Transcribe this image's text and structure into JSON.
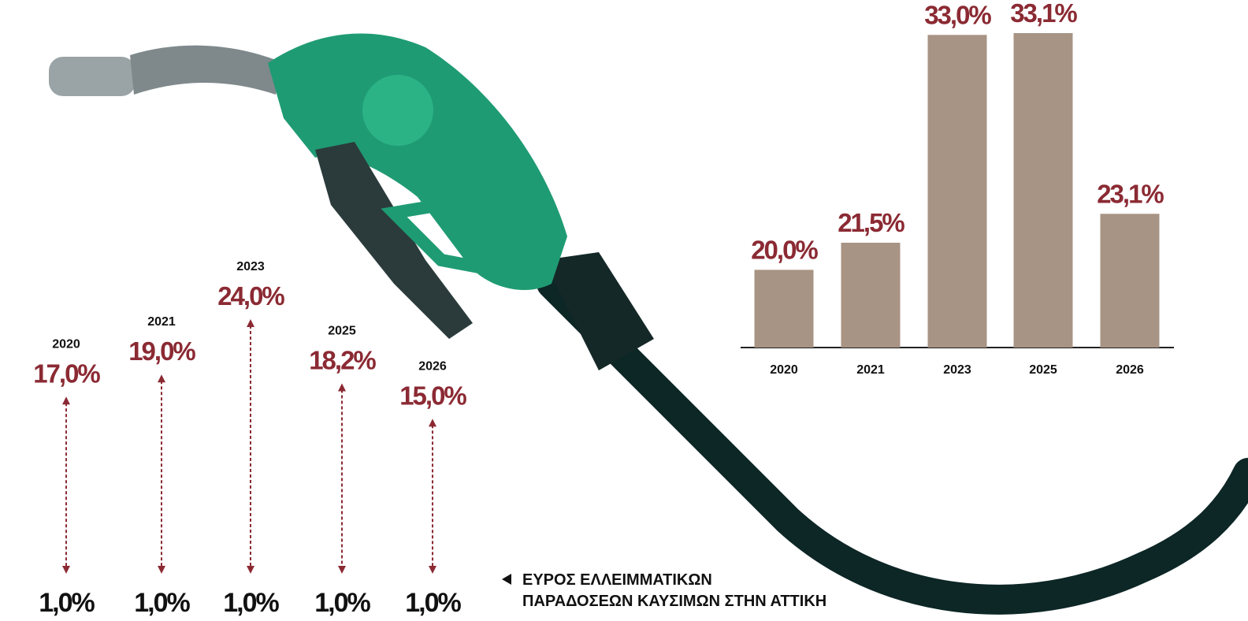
{
  "chart_data": [
    {
      "type": "range",
      "categories": [
        "2020",
        "2021",
        "2023",
        "2025",
        "2026"
      ],
      "high": {
        "values": [
          17.0,
          19.0,
          24.0,
          18.2,
          15.0
        ],
        "value_labels": [
          "17,0%",
          "19,0%",
          "24,0%",
          "18,2%",
          "15,0%"
        ]
      },
      "low": {
        "values": [
          1.0,
          1.0,
          1.0,
          1.0,
          1.0
        ],
        "value_labels": [
          "1,0%",
          "1,0%",
          "1,0%",
          "1,0%",
          "1,0%"
        ]
      },
      "color": "#8b2a33",
      "annotation": [
        "ΕΥΡΟΣ ΕΛΛΕΙΜΜΑΤΙΚΩΝ",
        "ΠΑΡΑΔΟΣΕΩΝ ΚΑΥΣΙΜΩΝ ΣΤΗΝ ΑΤΤΙΚΗ"
      ]
    },
    {
      "type": "bar",
      "categories": [
        "2020",
        "2021",
        "2023",
        "2025",
        "2026"
      ],
      "values": [
        20.0,
        21.5,
        33.0,
        33.1,
        23.1
      ],
      "value_labels": [
        "20,0%",
        "21,5%",
        "33,0%",
        "33,1%",
        "23,1%"
      ],
      "color": "#a89484",
      "label_color": "#8b2a33",
      "ylim": [
        15.7,
        33.1
      ]
    }
  ]
}
